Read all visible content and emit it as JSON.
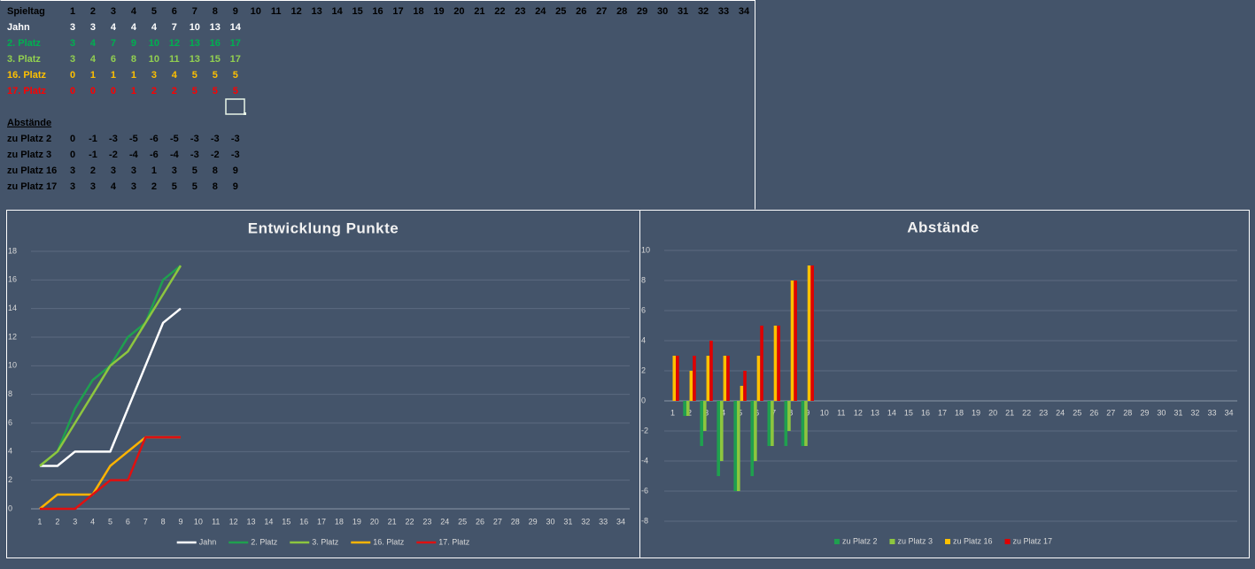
{
  "table": {
    "header": {
      "label": "Spieltag",
      "days": [
        1,
        2,
        3,
        4,
        5,
        6,
        7,
        8,
        9,
        10,
        11,
        12,
        13,
        14,
        15,
        16,
        17,
        18,
        19,
        20,
        21,
        22,
        23,
        24,
        25,
        26,
        27,
        28,
        29,
        30,
        31,
        32,
        33,
        34
      ]
    },
    "rows": [
      {
        "label": "Jahn",
        "color": "#ffffff",
        "values": [
          3,
          3,
          4,
          4,
          4,
          7,
          10,
          13,
          14
        ]
      },
      {
        "label": "2. Platz",
        "color": "#00b050",
        "values": [
          3,
          4,
          7,
          9,
          10,
          12,
          13,
          16,
          17
        ]
      },
      {
        "label": "3. Platz",
        "color": "#92d050",
        "values": [
          3,
          4,
          6,
          8,
          10,
          11,
          13,
          15,
          17
        ]
      },
      {
        "label": "16. Platz",
        "color": "#ffc000",
        "values": [
          0,
          1,
          1,
          1,
          3,
          4,
          5,
          5,
          5
        ]
      },
      {
        "label": "17. Platz",
        "color": "#ff0000",
        "values": [
          0,
          0,
          0,
          1,
          2,
          2,
          5,
          5,
          5
        ]
      }
    ],
    "section": "Abstände",
    "gap_rows": [
      {
        "label": "zu Platz 2",
        "values": [
          0,
          -1,
          -3,
          -5,
          -6,
          -5,
          -3,
          -3,
          -3
        ]
      },
      {
        "label": "zu Platz 3",
        "values": [
          0,
          -1,
          -2,
          -4,
          -6,
          -4,
          -3,
          -2,
          -3
        ]
      },
      {
        "label": "zu Platz 16",
        "values": [
          3,
          2,
          3,
          3,
          1,
          3,
          5,
          8,
          9
        ]
      },
      {
        "label": "zu Platz 17",
        "values": [
          3,
          3,
          4,
          3,
          2,
          5,
          5,
          8,
          9
        ]
      }
    ]
  },
  "chart_data": [
    {
      "type": "line",
      "title": "Entwicklung Punkte",
      "categories": [
        1,
        2,
        3,
        4,
        5,
        6,
        7,
        8,
        9,
        10,
        11,
        12,
        13,
        14,
        15,
        16,
        17,
        18,
        19,
        20,
        21,
        22,
        23,
        24,
        25,
        26,
        27,
        28,
        29,
        30,
        31,
        32,
        33,
        34
      ],
      "ylim": [
        0,
        18
      ],
      "yticks": [
        0,
        2,
        4,
        6,
        8,
        10,
        12,
        14,
        16,
        18
      ],
      "grid": true,
      "series": [
        {
          "name": "Jahn",
          "color": "#ffffff",
          "values": [
            3,
            3,
            4,
            4,
            4,
            7,
            10,
            13,
            14,
            null,
            null,
            null,
            null,
            null,
            null,
            null,
            null,
            null,
            null,
            null,
            null,
            null,
            null,
            null,
            null,
            null,
            null,
            null,
            null,
            null,
            null,
            null,
            null,
            null
          ]
        },
        {
          "name": "2. Platz",
          "color": "#1fa04f",
          "values": [
            3,
            4,
            7,
            9,
            10,
            12,
            13,
            16,
            17,
            null,
            null,
            null,
            null,
            null,
            null,
            null,
            null,
            null,
            null,
            null,
            null,
            null,
            null,
            null,
            null,
            null,
            null,
            null,
            null,
            null,
            null,
            null,
            null,
            null
          ]
        },
        {
          "name": "3. Platz",
          "color": "#8dc63f",
          "values": [
            3,
            4,
            6,
            8,
            10,
            11,
            13,
            15,
            17,
            null,
            null,
            null,
            null,
            null,
            null,
            null,
            null,
            null,
            null,
            null,
            null,
            null,
            null,
            null,
            null,
            null,
            null,
            null,
            null,
            null,
            null,
            null,
            null,
            null
          ]
        },
        {
          "name": "16. Platz",
          "color": "#ffb400",
          "values": [
            0,
            1,
            1,
            1,
            3,
            4,
            5,
            5,
            5,
            null,
            null,
            null,
            null,
            null,
            null,
            null,
            null,
            null,
            null,
            null,
            null,
            null,
            null,
            null,
            null,
            null,
            null,
            null,
            null,
            null,
            null,
            null,
            null,
            null
          ]
        },
        {
          "name": "17. Platz",
          "color": "#e01010",
          "values": [
            0,
            0,
            0,
            1,
            2,
            2,
            5,
            5,
            5,
            null,
            null,
            null,
            null,
            null,
            null,
            null,
            null,
            null,
            null,
            null,
            null,
            null,
            null,
            null,
            null,
            null,
            null,
            null,
            null,
            null,
            null,
            null,
            null,
            null
          ]
        }
      ]
    },
    {
      "type": "bar",
      "title": "Abstände",
      "categories": [
        1,
        2,
        3,
        4,
        5,
        6,
        7,
        8,
        9,
        10,
        11,
        12,
        13,
        14,
        15,
        16,
        17,
        18,
        19,
        20,
        21,
        22,
        23,
        24,
        25,
        26,
        27,
        28,
        29,
        30,
        31,
        32,
        33,
        34
      ],
      "ylim": [
        -8,
        10
      ],
      "yticks": [
        -8,
        -6,
        -4,
        -2,
        0,
        2,
        4,
        6,
        8,
        10
      ],
      "grid": true,
      "series": [
        {
          "name": "zu Platz 2",
          "color": "#1fa04f",
          "values": [
            0,
            -1,
            -3,
            -5,
            -6,
            -5,
            -3,
            -3,
            -3,
            null,
            null,
            null,
            null,
            null,
            null,
            null,
            null,
            null,
            null,
            null,
            null,
            null,
            null,
            null,
            null,
            null,
            null,
            null,
            null,
            null,
            null,
            null,
            null,
            null
          ]
        },
        {
          "name": "zu Platz 3",
          "color": "#8dc63f",
          "values": [
            0,
            -1,
            -2,
            -4,
            -6,
            -4,
            -3,
            -2,
            -3,
            null,
            null,
            null,
            null,
            null,
            null,
            null,
            null,
            null,
            null,
            null,
            null,
            null,
            null,
            null,
            null,
            null,
            null,
            null,
            null,
            null,
            null,
            null,
            null,
            null
          ]
        },
        {
          "name": "zu Platz 16",
          "color": "#ffc000",
          "values": [
            3,
            2,
            3,
            3,
            1,
            3,
            5,
            8,
            9,
            null,
            null,
            null,
            null,
            null,
            null,
            null,
            null,
            null,
            null,
            null,
            null,
            null,
            null,
            null,
            null,
            null,
            null,
            null,
            null,
            null,
            null,
            null,
            null,
            null
          ]
        },
        {
          "name": "zu Platz 17",
          "color": "#e00000",
          "values": [
            3,
            3,
            4,
            3,
            2,
            5,
            5,
            8,
            9,
            null,
            null,
            null,
            null,
            null,
            null,
            null,
            null,
            null,
            null,
            null,
            null,
            null,
            null,
            null,
            null,
            null,
            null,
            null,
            null,
            null,
            null,
            null,
            null,
            null
          ]
        }
      ]
    }
  ]
}
